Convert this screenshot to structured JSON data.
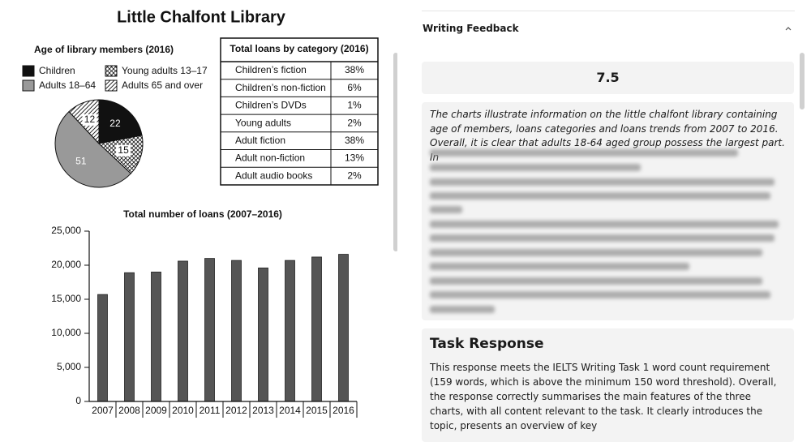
{
  "header": {
    "title": "Little Chalfont Library"
  },
  "chart_data": [
    {
      "type": "pie",
      "title": "Age of library members (2016)",
      "categories": [
        "Children",
        "Young adults 13–17",
        "Adults 18–64",
        "Adults 65 and over"
      ],
      "values": [
        22,
        15,
        51,
        12
      ],
      "colors": [
        "#111111",
        "#ffffff",
        "#999999",
        "#ffffff"
      ],
      "patterns": [
        null,
        "crosshatch",
        null,
        "diagonal"
      ]
    },
    {
      "type": "bar",
      "title": "Total number of loans (2007–2016)",
      "categories": [
        "2007",
        "2008",
        "2009",
        "2010",
        "2011",
        "2012",
        "2013",
        "2014",
        "2015",
        "2016"
      ],
      "values": [
        15700,
        18900,
        19000,
        20600,
        21000,
        20700,
        19600,
        20700,
        21200,
        21600
      ],
      "color": "#555555",
      "ylim": [
        0,
        25000
      ],
      "yticks": [
        0,
        {
          "value": 5000,
          "label": "5,000"
        },
        {
          "value": 10000,
          "label": "10,000"
        },
        {
          "value": 15000,
          "label": "15,000"
        },
        {
          "value": 20000,
          "label": "20,000"
        },
        {
          "value": 25000,
          "label": "25,000"
        }
      ]
    }
  ],
  "table": {
    "title": "Total loans by category (2016)",
    "rows": [
      [
        "Children’s fiction",
        "38%"
      ],
      [
        "Children’s non-fiction",
        "6%"
      ],
      [
        "Children’s DVDs",
        "1%"
      ],
      [
        "Young adults",
        "2%"
      ],
      [
        "Adult fiction",
        "38%"
      ],
      [
        "Adult non-fiction",
        "13%"
      ],
      [
        "Adult audio books",
        "2%"
      ]
    ]
  },
  "panel": {
    "title": "Writing Feedback",
    "score": "7.5",
    "essay": [
      "The charts illustrate information on the little chalfont library containing age of members, loans categories and loans trends from 2007 to 2016.",
      "Overall, it is clear that adults 18-64 aged group possess the largest part. In"
    ],
    "section_title": "Task Response",
    "section_text": "This response meets the IELTS Writing Task 1 word count requirement (159 words, which is above the minimum 150 word threshold). Overall, the response correctly summarises the main features of the three charts, with all content relevant to the task. It clearly introduces the topic, presents an overview of key"
  }
}
